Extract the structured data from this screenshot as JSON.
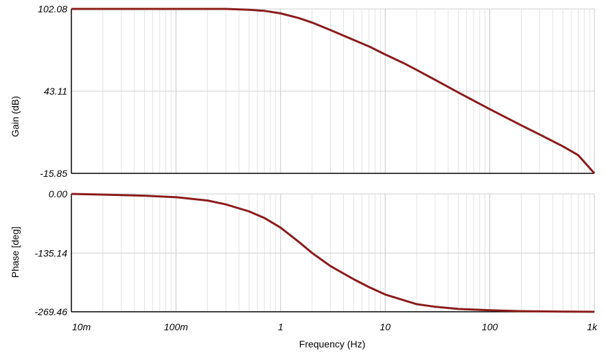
{
  "chart_data": [
    {
      "type": "line",
      "ylabel": "Gain (dB)",
      "x_scale": "log",
      "xlim": [
        0.01,
        1000
      ],
      "ylim": [
        -15.85,
        102.08
      ],
      "ytick_labels": [
        "102.08",
        "43.11",
        "-15.85"
      ],
      "yticks": [
        102.08,
        43.11,
        -15.85
      ],
      "series": [
        {
          "color": "#8b1a1a",
          "x": [
            0.01,
            0.1,
            0.3,
            0.5,
            0.7,
            1,
            1.5,
            2,
            3,
            5,
            7,
            10,
            15,
            20,
            30,
            50,
            100,
            200,
            300,
            500,
            700,
            1000
          ],
          "y": [
            102.08,
            102.08,
            102.08,
            101.5,
            100.7,
            98.9,
            95.5,
            92.3,
            86.9,
            79.8,
            75.2,
            69.4,
            63.2,
            58.3,
            51.2,
            42.2,
            30.2,
            18.6,
            12.0,
            3.5,
            -2.8,
            -15.85
          ]
        }
      ]
    },
    {
      "type": "line",
      "ylabel": "Phase [deg]",
      "xlabel": "Frequency (Hz)",
      "x_scale": "log",
      "xlim": [
        0.01,
        1000
      ],
      "ylim": [
        -269.46,
        0
      ],
      "ytick_labels": [
        "0.00",
        "-135.14",
        "-269.46"
      ],
      "yticks": [
        0,
        -135.14,
        -269.46
      ],
      "xtick_labels": [
        "10m",
        "100m",
        "1",
        "10",
        "100",
        "1k"
      ],
      "xticks": [
        0.01,
        0.1,
        1,
        10,
        100,
        1000
      ],
      "series": [
        {
          "color": "#8b1a1a",
          "x": [
            0.01,
            0.02,
            0.05,
            0.1,
            0.2,
            0.3,
            0.5,
            0.7,
            1,
            1.5,
            2,
            3,
            5,
            7,
            10,
            20,
            30,
            50,
            100,
            200,
            500,
            1000
          ],
          "y": [
            0,
            -1.5,
            -4,
            -7.5,
            -15,
            -24,
            -40,
            -55,
            -77,
            -110,
            -135,
            -165,
            -195,
            -213,
            -230,
            -252,
            -258,
            -263,
            -266,
            -268,
            -269,
            -269.46
          ]
        }
      ]
    }
  ]
}
